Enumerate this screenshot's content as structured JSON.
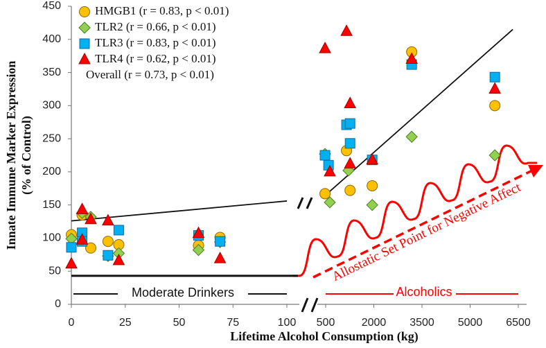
{
  "chart_data": {
    "type": "scatter",
    "y_label": "Innate Immune Marker Expression",
    "y_label_sub": "(% of Control)",
    "x_label": "Lifetime Alcohol Consumption (kg)",
    "ylim": [
      0,
      450
    ],
    "yticks": [
      0,
      50,
      100,
      150,
      200,
      250,
      300,
      350,
      400,
      450
    ],
    "xlim": [
      0,
      100
    ],
    "xticks": [
      0,
      25,
      50,
      75,
      100
    ],
    "x2lim": [
      500,
      6500
    ],
    "x2ticks": [
      500,
      2000,
      3500,
      5000,
      6500
    ],
    "series": [
      {
        "name": "HMGB1 (r = 0.83, p < 0.01)",
        "marker": "circle",
        "color": "#ffc000",
        "x": [
          0,
          5,
          9,
          17,
          22,
          59,
          69,
          480,
          1150,
          1260,
          1950,
          3180,
          5770
        ],
        "values": [
          105,
          135,
          85,
          95,
          90,
          89,
          101,
          167,
          232,
          172,
          179,
          381,
          300
        ]
      },
      {
        "name": "TLR2 (r = 0.66, p < 0.01)",
        "marker": "diamond",
        "color": "#92d050",
        "x": [
          0,
          5,
          9,
          17,
          22,
          59,
          69,
          480,
          630,
          1210,
          1950,
          3180,
          5770
        ],
        "values": [
          99,
          138,
          132,
          73,
          77,
          82,
          94,
          227,
          154,
          202,
          150,
          253,
          225
        ]
      },
      {
        "name": "TLR3 (r = 0.83, p < 0.01)",
        "marker": "square",
        "color": "#00b0f0",
        "x": [
          0,
          5,
          5,
          17,
          22,
          59,
          69,
          480,
          590,
          1150,
          1260,
          1260,
          1950,
          3180,
          5770
        ],
        "values": [
          86,
          108,
          95,
          74,
          112,
          104,
          95,
          225,
          210,
          271,
          273,
          243,
          218,
          362,
          343
        ]
      },
      {
        "name": "TLR4 (r = 0.62, p < 0.01)",
        "marker": "triangle",
        "color": "#ff0000",
        "x": [
          0,
          5,
          5,
          9,
          17,
          22,
          59,
          69,
          480,
          630,
          1150,
          1260,
          1260,
          1950,
          3180,
          5770
        ],
        "values": [
          61,
          143,
          97,
          128,
          126,
          66,
          107,
          69,
          386,
          200,
          412,
          303,
          212,
          218,
          370,
          325
        ]
      }
    ],
    "overall_label": "Overall (r = 0.73, p < 0.01)",
    "trend_lines": [
      {
        "x": [
          0,
          100
        ],
        "values": [
          126,
          156
        ]
      },
      {
        "x": [
          500,
          6330
        ],
        "values": [
          165,
          415
        ]
      }
    ],
    "baseline": 43,
    "group_labels": [
      "Moderate Drinkers",
      "Alcoholics"
    ],
    "annotation": "Allostatic Set Point for Negative Affect"
  }
}
